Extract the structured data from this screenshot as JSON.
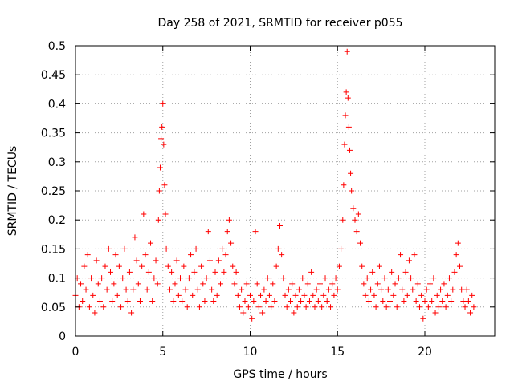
{
  "chart_data": {
    "type": "scatter",
    "title": "Day 258 of 2021, SRMTID for receiver p055",
    "xlabel": "GPS time / hours",
    "ylabel": "SRMTID / TECUs",
    "xlim": [
      0,
      24
    ],
    "ylim": [
      0,
      0.5
    ],
    "xticks": [
      0,
      5,
      10,
      15,
      20
    ],
    "yticks": [
      0,
      0.05,
      0.1,
      0.15,
      0.2,
      0.25,
      0.3,
      0.35,
      0.4,
      0.45,
      0.5
    ],
    "xtick_labels": [
      "0",
      "5",
      "10",
      "15",
      "20"
    ],
    "ytick_labels": [
      "0",
      "0.05",
      "0.1",
      "0.15",
      "0.2",
      "0.25",
      "0.3",
      "0.35",
      "0.4",
      "0.45",
      "0.5"
    ],
    "grid": true,
    "marker": "+",
    "color": "#ff0000",
    "series": [
      {
        "name": "SRMTID",
        "points": [
          [
            0.0,
            0.07
          ],
          [
            0.1,
            0.1
          ],
          [
            0.2,
            0.05
          ],
          [
            0.3,
            0.09
          ],
          [
            0.4,
            0.06
          ],
          [
            0.5,
            0.12
          ],
          [
            0.6,
            0.08
          ],
          [
            0.7,
            0.14
          ],
          [
            0.8,
            0.05
          ],
          [
            0.9,
            0.1
          ],
          [
            1.0,
            0.07
          ],
          [
            1.1,
            0.04
          ],
          [
            1.2,
            0.13
          ],
          [
            1.3,
            0.09
          ],
          [
            1.4,
            0.06
          ],
          [
            1.5,
            0.1
          ],
          [
            1.6,
            0.05
          ],
          [
            1.7,
            0.12
          ],
          [
            1.8,
            0.08
          ],
          [
            1.9,
            0.15
          ],
          [
            2.0,
            0.11
          ],
          [
            2.1,
            0.06
          ],
          [
            2.2,
            0.09
          ],
          [
            2.3,
            0.14
          ],
          [
            2.4,
            0.07
          ],
          [
            2.5,
            0.12
          ],
          [
            2.6,
            0.05
          ],
          [
            2.7,
            0.1
          ],
          [
            2.8,
            0.15
          ],
          [
            2.9,
            0.08
          ],
          [
            3.0,
            0.06
          ],
          [
            3.1,
            0.11
          ],
          [
            3.2,
            0.04
          ],
          [
            3.3,
            0.08
          ],
          [
            3.4,
            0.17
          ],
          [
            3.5,
            0.13
          ],
          [
            3.6,
            0.09
          ],
          [
            3.7,
            0.06
          ],
          [
            3.8,
            0.12
          ],
          [
            3.9,
            0.21
          ],
          [
            4.0,
            0.14
          ],
          [
            4.1,
            0.08
          ],
          [
            4.2,
            0.11
          ],
          [
            4.3,
            0.16
          ],
          [
            4.4,
            0.06
          ],
          [
            4.5,
            0.1
          ],
          [
            4.6,
            0.13
          ],
          [
            4.7,
            0.09
          ],
          [
            4.75,
            0.2
          ],
          [
            4.8,
            0.25
          ],
          [
            4.85,
            0.29
          ],
          [
            4.9,
            0.34
          ],
          [
            4.95,
            0.36
          ],
          [
            5.0,
            0.4
          ],
          [
            5.05,
            0.33
          ],
          [
            5.1,
            0.26
          ],
          [
            5.15,
            0.21
          ],
          [
            5.2,
            0.15
          ],
          [
            5.3,
            0.12
          ],
          [
            5.4,
            0.08
          ],
          [
            5.5,
            0.11
          ],
          [
            5.6,
            0.06
          ],
          [
            5.7,
            0.09
          ],
          [
            5.8,
            0.13
          ],
          [
            5.9,
            0.07
          ],
          [
            6.0,
            0.1
          ],
          [
            6.1,
            0.06
          ],
          [
            6.2,
            0.12
          ],
          [
            6.3,
            0.08
          ],
          [
            6.4,
            0.05
          ],
          [
            6.5,
            0.1
          ],
          [
            6.6,
            0.14
          ],
          [
            6.7,
            0.07
          ],
          [
            6.8,
            0.11
          ],
          [
            6.9,
            0.15
          ],
          [
            7.0,
            0.08
          ],
          [
            7.1,
            0.05
          ],
          [
            7.2,
            0.12
          ],
          [
            7.3,
            0.09
          ],
          [
            7.4,
            0.06
          ],
          [
            7.5,
            0.1
          ],
          [
            7.6,
            0.18
          ],
          [
            7.7,
            0.13
          ],
          [
            7.8,
            0.08
          ],
          [
            7.9,
            0.06
          ],
          [
            8.0,
            0.11
          ],
          [
            8.1,
            0.07
          ],
          [
            8.2,
            0.13
          ],
          [
            8.3,
            0.09
          ],
          [
            8.4,
            0.15
          ],
          [
            8.5,
            0.11
          ],
          [
            8.6,
            0.14
          ],
          [
            8.7,
            0.18
          ],
          [
            8.8,
            0.2
          ],
          [
            8.9,
            0.16
          ],
          [
            9.0,
            0.12
          ],
          [
            9.1,
            0.09
          ],
          [
            9.2,
            0.11
          ],
          [
            9.3,
            0.07
          ],
          [
            9.4,
            0.05
          ],
          [
            9.5,
            0.08
          ],
          [
            9.6,
            0.04
          ],
          [
            9.7,
            0.06
          ],
          [
            9.8,
            0.09
          ],
          [
            9.9,
            0.05
          ],
          [
            10.0,
            0.07
          ],
          [
            10.1,
            0.03
          ],
          [
            10.2,
            0.06
          ],
          [
            10.3,
            0.18
          ],
          [
            10.4,
            0.09
          ],
          [
            10.5,
            0.05
          ],
          [
            10.6,
            0.07
          ],
          [
            10.7,
            0.04
          ],
          [
            10.8,
            0.08
          ],
          [
            10.9,
            0.06
          ],
          [
            11.0,
            0.1
          ],
          [
            11.1,
            0.07
          ],
          [
            11.2,
            0.05
          ],
          [
            11.3,
            0.09
          ],
          [
            11.4,
            0.06
          ],
          [
            11.5,
            0.12
          ],
          [
            11.6,
            0.15
          ],
          [
            11.7,
            0.19
          ],
          [
            11.8,
            0.14
          ],
          [
            11.9,
            0.1
          ],
          [
            12.0,
            0.07
          ],
          [
            12.1,
            0.05
          ],
          [
            12.2,
            0.08
          ],
          [
            12.3,
            0.06
          ],
          [
            12.4,
            0.09
          ],
          [
            12.5,
            0.04
          ],
          [
            12.6,
            0.07
          ],
          [
            12.7,
            0.05
          ],
          [
            12.8,
            0.08
          ],
          [
            12.9,
            0.06
          ],
          [
            13.0,
            0.1
          ],
          [
            13.1,
            0.07
          ],
          [
            13.2,
            0.05
          ],
          [
            13.3,
            0.09
          ],
          [
            13.4,
            0.06
          ],
          [
            13.5,
            0.11
          ],
          [
            13.6,
            0.07
          ],
          [
            13.7,
            0.05
          ],
          [
            13.8,
            0.08
          ],
          [
            13.9,
            0.06
          ],
          [
            14.0,
            0.09
          ],
          [
            14.1,
            0.05
          ],
          [
            14.2,
            0.07
          ],
          [
            14.3,
            0.1
          ],
          [
            14.4,
            0.06
          ],
          [
            14.5,
            0.08
          ],
          [
            14.6,
            0.05
          ],
          [
            14.7,
            0.09
          ],
          [
            14.8,
            0.07
          ],
          [
            14.9,
            0.1
          ],
          [
            15.0,
            0.08
          ],
          [
            15.1,
            0.12
          ],
          [
            15.2,
            0.15
          ],
          [
            15.3,
            0.2
          ],
          [
            15.35,
            0.26
          ],
          [
            15.4,
            0.33
          ],
          [
            15.45,
            0.38
          ],
          [
            15.5,
            0.42
          ],
          [
            15.55,
            0.49
          ],
          [
            15.6,
            0.41
          ],
          [
            15.65,
            0.36
          ],
          [
            15.7,
            0.32
          ],
          [
            15.75,
            0.28
          ],
          [
            15.8,
            0.25
          ],
          [
            15.9,
            0.22
          ],
          [
            16.0,
            0.2
          ],
          [
            16.1,
            0.18
          ],
          [
            16.2,
            0.21
          ],
          [
            16.3,
            0.16
          ],
          [
            16.4,
            0.12
          ],
          [
            16.5,
            0.09
          ],
          [
            16.6,
            0.07
          ],
          [
            16.7,
            0.1
          ],
          [
            16.8,
            0.06
          ],
          [
            16.9,
            0.08
          ],
          [
            17.0,
            0.11
          ],
          [
            17.1,
            0.07
          ],
          [
            17.2,
            0.05
          ],
          [
            17.3,
            0.09
          ],
          [
            17.4,
            0.12
          ],
          [
            17.5,
            0.08
          ],
          [
            17.6,
            0.06
          ],
          [
            17.7,
            0.1
          ],
          [
            17.8,
            0.05
          ],
          [
            17.9,
            0.08
          ],
          [
            18.0,
            0.06
          ],
          [
            18.1,
            0.11
          ],
          [
            18.2,
            0.07
          ],
          [
            18.3,
            0.09
          ],
          [
            18.4,
            0.05
          ],
          [
            18.5,
            0.1
          ],
          [
            18.6,
            0.14
          ],
          [
            18.7,
            0.08
          ],
          [
            18.8,
            0.06
          ],
          [
            18.9,
            0.11
          ],
          [
            19.0,
            0.07
          ],
          [
            19.1,
            0.13
          ],
          [
            19.2,
            0.1
          ],
          [
            19.3,
            0.08
          ],
          [
            19.4,
            0.14
          ],
          [
            19.5,
            0.06
          ],
          [
            19.6,
            0.09
          ],
          [
            19.7,
            0.05
          ],
          [
            19.8,
            0.07
          ],
          [
            19.9,
            0.03
          ],
          [
            20.0,
            0.06
          ],
          [
            20.1,
            0.08
          ],
          [
            20.2,
            0.05
          ],
          [
            20.3,
            0.09
          ],
          [
            20.4,
            0.06
          ],
          [
            20.5,
            0.1
          ],
          [
            20.6,
            0.04
          ],
          [
            20.7,
            0.07
          ],
          [
            20.8,
            0.05
          ],
          [
            20.9,
            0.08
          ],
          [
            21.0,
            0.06
          ],
          [
            21.1,
            0.09
          ],
          [
            21.2,
            0.05
          ],
          [
            21.3,
            0.07
          ],
          [
            21.4,
            0.1
          ],
          [
            21.5,
            0.06
          ],
          [
            21.6,
            0.08
          ],
          [
            21.7,
            0.11
          ],
          [
            21.8,
            0.14
          ],
          [
            21.9,
            0.16
          ],
          [
            22.0,
            0.12
          ],
          [
            22.1,
            0.08
          ],
          [
            22.2,
            0.06
          ],
          [
            22.3,
            0.05
          ],
          [
            22.4,
            0.08
          ],
          [
            22.5,
            0.06
          ],
          [
            22.6,
            0.04
          ],
          [
            22.7,
            0.07
          ],
          [
            22.8,
            0.05
          ]
        ]
      }
    ]
  }
}
